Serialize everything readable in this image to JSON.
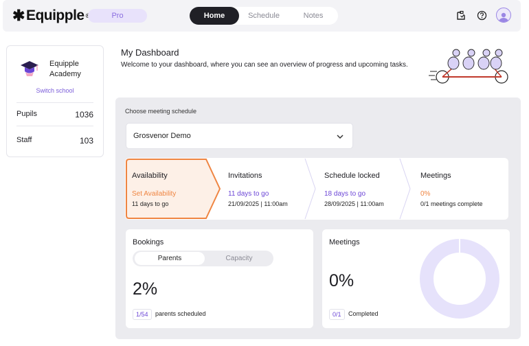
{
  "app": {
    "brand": "Equipple",
    "plan_badge": "Pro",
    "nav": {
      "home": "Home",
      "schedule": "Schedule",
      "notes": "Notes"
    },
    "icons": [
      "notification-icon",
      "help-icon",
      "avatar"
    ]
  },
  "school": {
    "name": "Equipple Academy",
    "switch_label": "Switch school",
    "stats": [
      {
        "label": "Pupils",
        "value": "1036"
      },
      {
        "label": "Staff",
        "value": "103"
      }
    ]
  },
  "dashboard": {
    "title": "My Dashboard",
    "subtitle": "Welcome to your dashboard, where you can see an overview of progress and upcoming tasks."
  },
  "schedule": {
    "choose_label": "Choose meeting schedule",
    "selected": "Grosvenor Demo",
    "steps": [
      {
        "title": "Availability",
        "line1": "Set Availability",
        "line2": "11 days to go"
      },
      {
        "title": "Invitations",
        "line1": "11 days to go",
        "line2": "21/09/2025 | 11:00am"
      },
      {
        "title": "Schedule locked",
        "line1": "18 days to go",
        "line2": "28/09/2025 | 11:00am"
      },
      {
        "title": "Meetings",
        "line1": "0%",
        "line2": "0/1 meetings complete"
      }
    ]
  },
  "bookings": {
    "title": "Bookings",
    "toggle": {
      "active": "Parents",
      "inactive": "Capacity"
    },
    "percent": "2%",
    "count": "1/54",
    "count_label": "parents scheduled"
  },
  "meetings": {
    "title": "Meetings",
    "percent": "0%",
    "count": "0/1",
    "count_label": "Completed",
    "progress_fraction": 0
  },
  "colors": {
    "accent": "#6b45d6",
    "orange": "#ef8542",
    "donut": "#e6e2fb"
  }
}
